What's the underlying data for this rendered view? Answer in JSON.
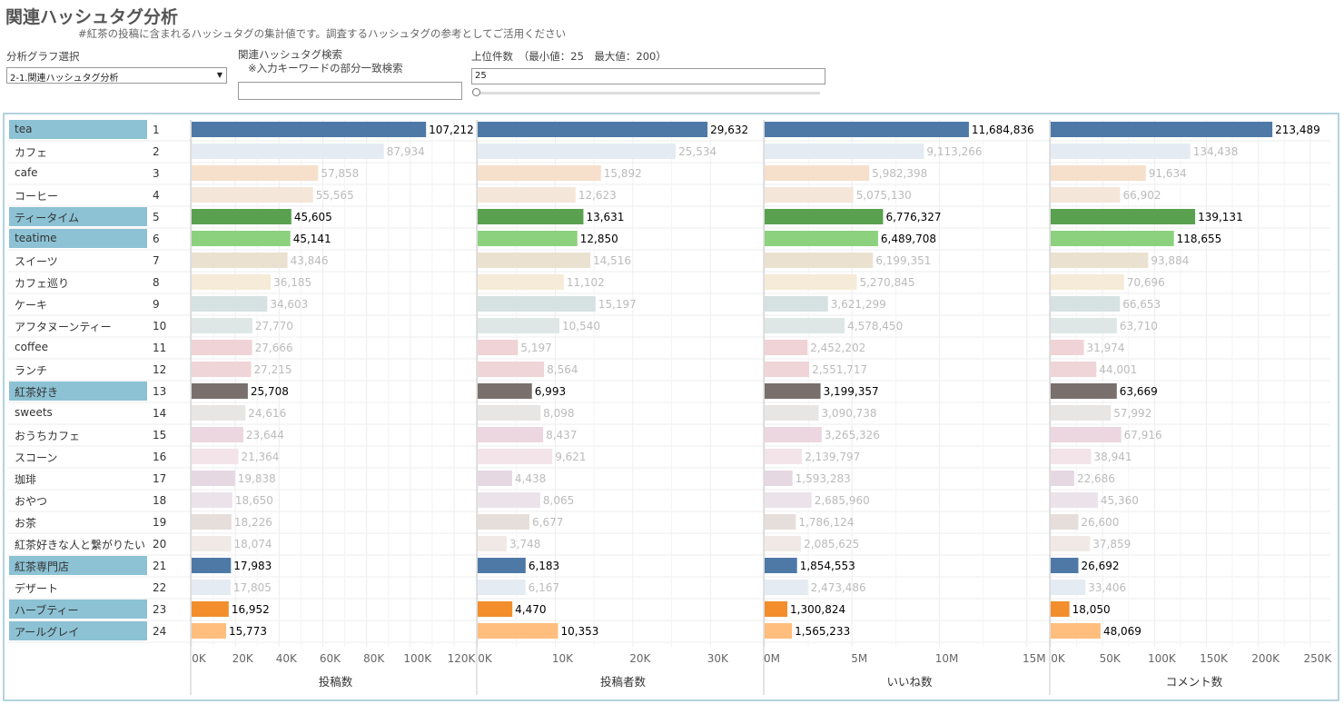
{
  "header": {
    "title": "関連ハッシュタグ分析",
    "subtitle": "#紅茶の投稿に含まれるハッシュタグの集計値です。調査するハッシュタグの参考としてご活用ください"
  },
  "controls": {
    "graph_select_label": "分析グラフ選択",
    "graph_select_value": "2-1.関連ハッシュタグ分析",
    "search_label": "関連ハッシュタグ検索",
    "search_note": "※入力キーワードの部分一致検索",
    "search_value": "",
    "topn_label": "上位件数　（最小値：25　最大値：200）",
    "topn_value": "25",
    "topn_min": 25,
    "topn_max": 200
  },
  "chart_data": {
    "type": "bar",
    "orientation": "horizontal",
    "rows": [
      {
        "rank": "1",
        "tag": "tea",
        "highlighted": true,
        "color": "#4e79a7",
        "posts": 107212,
        "posters": 29632,
        "likes": 11684836,
        "comments": 213489
      },
      {
        "rank": "2",
        "tag": "カフェ",
        "highlighted": false,
        "color": "#e4ebf3",
        "posts": 87934,
        "posters": 25534,
        "likes": 9113266,
        "comments": 134438
      },
      {
        "rank": "3",
        "tag": "cafe",
        "highlighted": false,
        "color": "#f6dfcb",
        "posts": 57858,
        "posters": 15892,
        "likes": 5982398,
        "comments": 91634
      },
      {
        "rank": "4",
        "tag": "コーヒー",
        "highlighted": false,
        "color": "#f5e6da",
        "posts": 55565,
        "posters": 12623,
        "likes": 5075130,
        "comments": 66902
      },
      {
        "rank": "5",
        "tag": "ティータイム",
        "highlighted": true,
        "color": "#59a14f",
        "posts": 45605,
        "posters": 13631,
        "likes": 6776327,
        "comments": 139131
      },
      {
        "rank": "6",
        "tag": "teatime",
        "highlighted": true,
        "color": "#8cd17d",
        "posts": 45141,
        "posters": 12850,
        "likes": 6489708,
        "comments": 118655
      },
      {
        "rank": "7",
        "tag": "スイーツ",
        "highlighted": false,
        "color": "#ebe1d0",
        "posts": 43846,
        "posters": 14516,
        "likes": 6199351,
        "comments": 93884
      },
      {
        "rank": "8",
        "tag": "カフェ巡り",
        "highlighted": false,
        "color": "#f5ebd8",
        "posts": 36185,
        "posters": 11102,
        "likes": 5270845,
        "comments": 70696
      },
      {
        "rank": "9",
        "tag": "ケーキ",
        "highlighted": false,
        "color": "#d6e1e2",
        "posts": 34603,
        "posters": 15197,
        "likes": 3621299,
        "comments": 66653
      },
      {
        "rank": "10",
        "tag": "アフタヌーンティー",
        "highlighted": false,
        "color": "#dfe6e6",
        "posts": 27770,
        "posters": 10540,
        "likes": 4578450,
        "comments": 63710
      },
      {
        "rank": "11",
        "tag": "coffee",
        "highlighted": false,
        "color": "#f0d3d6",
        "posts": 27666,
        "posters": 5197,
        "likes": 2452202,
        "comments": 31974
      },
      {
        "rank": "12",
        "tag": "ランチ",
        "highlighted": false,
        "color": "#f0d5d8",
        "posts": 27215,
        "posters": 8564,
        "likes": 2551717,
        "comments": 44001
      },
      {
        "rank": "13",
        "tag": "紅茶好き",
        "highlighted": true,
        "color": "#79706e",
        "posts": 25708,
        "posters": 6993,
        "likes": 3199357,
        "comments": 63669
      },
      {
        "rank": "14",
        "tag": "sweets",
        "highlighted": false,
        "color": "#e8e6e4",
        "posts": 24616,
        "posters": 8098,
        "likes": 3090738,
        "comments": 57992
      },
      {
        "rank": "15",
        "tag": "おうちカフェ",
        "highlighted": false,
        "color": "#ecd6df",
        "posts": 23644,
        "posters": 8437,
        "likes": 3265326,
        "comments": 67916
      },
      {
        "rank": "16",
        "tag": "スコーン",
        "highlighted": false,
        "color": "#f3e4e9",
        "posts": 21364,
        "posters": 9621,
        "likes": 2139797,
        "comments": 38941
      },
      {
        "rank": "17",
        "tag": "珈琲",
        "highlighted": false,
        "color": "#e6d8e3",
        "posts": 19838,
        "posters": 4438,
        "likes": 1593283,
        "comments": 22686
      },
      {
        "rank": "18",
        "tag": "おやつ",
        "highlighted": false,
        "color": "#ece3ea",
        "posts": 18650,
        "posters": 8065,
        "likes": 2685960,
        "comments": 45360
      },
      {
        "rank": "19",
        "tag": "お茶",
        "highlighted": false,
        "color": "#e6dedb",
        "posts": 18226,
        "posters": 6677,
        "likes": 1786124,
        "comments": 26600
      },
      {
        "rank": "20",
        "tag": "紅茶好きな人と繋がりたい",
        "highlighted": false,
        "color": "#f0e9e6",
        "posts": 18074,
        "posters": 3748,
        "likes": 2085625,
        "comments": 37859
      },
      {
        "rank": "21",
        "tag": "紅茶専門店",
        "highlighted": true,
        "color": "#4e79a7",
        "posts": 17983,
        "posters": 6183,
        "likes": 1854553,
        "comments": 26692
      },
      {
        "rank": "22",
        "tag": "デザート",
        "highlighted": false,
        "color": "#e4ebf3",
        "posts": 17805,
        "posters": 6167,
        "likes": 2473486,
        "comments": 33406
      },
      {
        "rank": "23",
        "tag": "ハーブティー",
        "highlighted": true,
        "color": "#f28e2b",
        "posts": 16952,
        "posters": 4470,
        "likes": 1300824,
        "comments": 18050
      },
      {
        "rank": "24",
        "tag": "アールグレイ",
        "highlighted": true,
        "color": "#ffbe7d",
        "posts": 15773,
        "posters": 10353,
        "likes": 1565233,
        "comments": 48069
      }
    ],
    "panels": [
      {
        "key": "posts",
        "xlabel": "投稿数",
        "xmax": 125000,
        "ticks": [
          0,
          20000,
          40000,
          60000,
          80000,
          100000,
          120000
        ],
        "tick_labels": [
          "0K",
          "20K",
          "40K",
          "60K",
          "80K",
          "100K",
          "120K"
        ]
      },
      {
        "key": "posters",
        "xlabel": "投稿者数",
        "xmax": 35000,
        "ticks": [
          0,
          10000,
          20000,
          30000
        ],
        "tick_labels": [
          "0K",
          "10K",
          "20K",
          "30K"
        ]
      },
      {
        "key": "likes",
        "xlabel": "いいね数",
        "xmax": 16000000,
        "ticks": [
          0,
          5000000,
          10000000,
          15000000
        ],
        "tick_labels": [
          "0M",
          "5M",
          "10M",
          "15M"
        ]
      },
      {
        "key": "comments",
        "xlabel": "コメント数",
        "xmax": 265000,
        "ticks": [
          0,
          50000,
          100000,
          150000,
          200000,
          250000
        ],
        "tick_labels": [
          "0K",
          "50K",
          "100K",
          "150K",
          "200K",
          "250K"
        ]
      }
    ],
    "label_colors": {
      "highlighted": "#000000",
      "dimmed": "#bbbbbb"
    }
  }
}
